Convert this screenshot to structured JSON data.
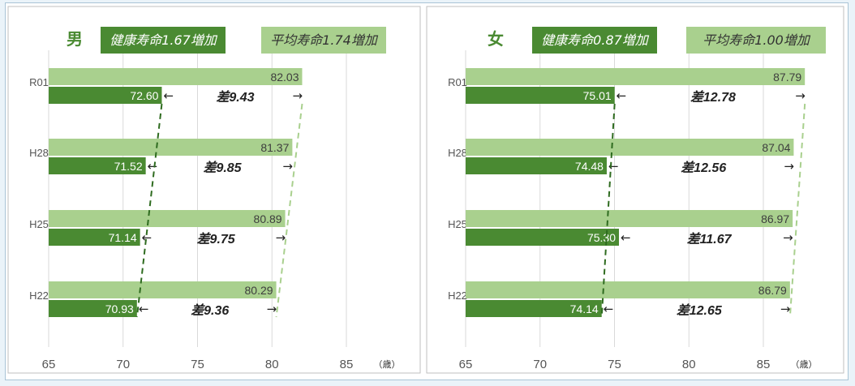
{
  "colors": {
    "healthy": "#4a8a32",
    "average": "#a9d08e",
    "sex_label": "#4a8a32",
    "connector_dark": "#2e6b1f",
    "connector_light": "#a9d08e"
  },
  "chart_data": [
    {
      "type": "bar",
      "orientation": "horizontal",
      "sex_label": "男",
      "healthy_box": "健康寿命1.67増加",
      "average_box": "平均寿命1.74増加",
      "categories": [
        "R01",
        "H28",
        "H25",
        "H22"
      ],
      "series": [
        {
          "key": "average",
          "values": [
            82.03,
            81.37,
            80.89,
            80.29
          ]
        },
        {
          "key": "healthy",
          "values": [
            72.6,
            71.52,
            71.14,
            70.93
          ]
        }
      ],
      "differences": [
        "差9.43",
        "差9.85",
        "差9.75",
        "差9.36"
      ],
      "xlim": [
        65,
        89
      ],
      "xticks": [
        65,
        70,
        75,
        80,
        85
      ],
      "xunit": "（歳）",
      "grid": true
    },
    {
      "type": "bar",
      "orientation": "horizontal",
      "sex_label": "女",
      "healthy_box": "健康寿命0.87増加",
      "average_box": "平均寿命1.00増加",
      "categories": [
        "R01",
        "H28",
        "H25",
        "H22"
      ],
      "series": [
        {
          "key": "average",
          "values": [
            87.79,
            87.04,
            86.97,
            86.79
          ]
        },
        {
          "key": "healthy",
          "values": [
            75.01,
            74.48,
            75.3,
            74.14
          ]
        }
      ],
      "differences": [
        "差12.78",
        "差12.56",
        "差11.67",
        "差12.65"
      ],
      "xlim": [
        65,
        89
      ],
      "xticks": [
        65,
        70,
        75,
        80,
        85
      ],
      "xunit": "（歳）",
      "grid": true
    }
  ]
}
